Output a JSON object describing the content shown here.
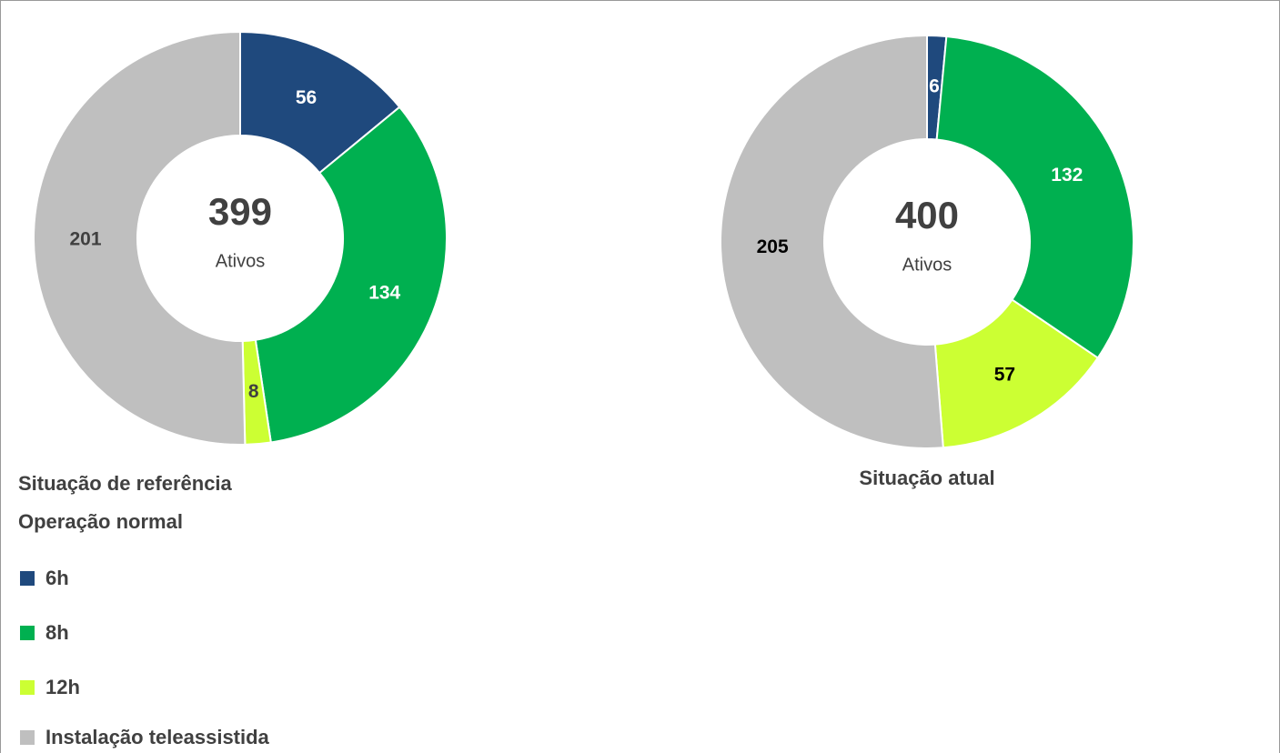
{
  "legend": {
    "categories": [
      "6h",
      "8h",
      "12h",
      "Instalação teleassistida"
    ],
    "colors": [
      "#1f497d",
      "#00b050",
      "#ccff33",
      "#bfbfbf"
    ]
  },
  "chart_data": [
    {
      "type": "pie",
      "title": "Situação de referência",
      "subtitle": "Operação normal",
      "values": [
        56,
        134,
        8,
        201
      ],
      "label_colors": [
        "#ffffff",
        "#ffffff",
        "#404040",
        "#404040"
      ],
      "center_value": 399,
      "center_label": "Ativos"
    },
    {
      "type": "pie",
      "title": "Situação atual",
      "values": [
        6,
        132,
        57,
        205
      ],
      "label_colors": [
        "#ffffff",
        "#ffffff",
        "#000000",
        "#000000"
      ],
      "center_value": 400,
      "center_label": "Ativos"
    }
  ]
}
